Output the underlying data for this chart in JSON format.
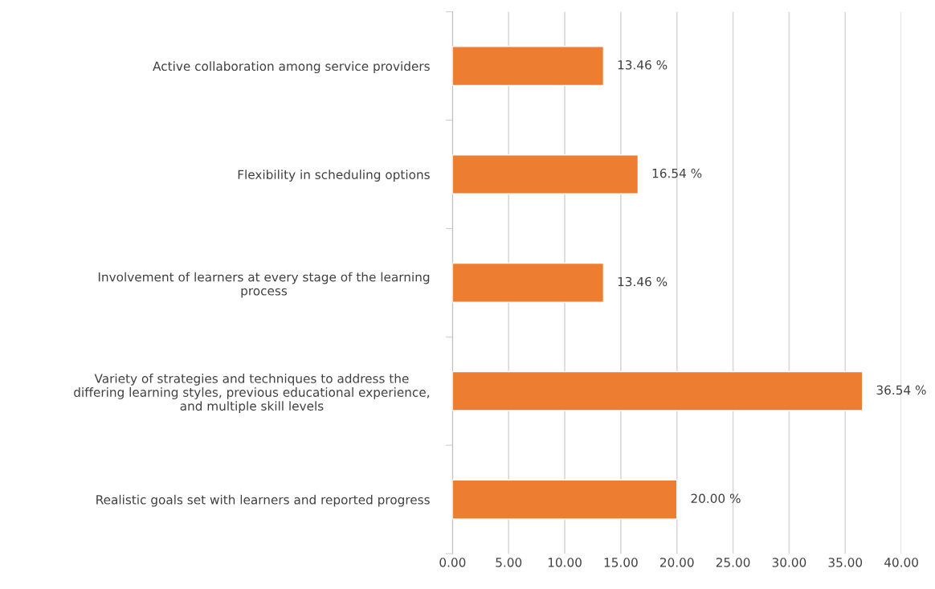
{
  "chart_data": {
    "type": "bar",
    "orientation": "horizontal",
    "categories": [
      "Active collaboration among service providers",
      "Flexibility in scheduling options",
      "Involvement of learners at every stage of the learning\nprocess",
      "Variety of strategies and techniques to address the\ndiffering learning styles, previous educational experience,\nand multiple skill levels",
      "Realistic goals set with learners and reported progress"
    ],
    "values": [
      13.46,
      16.54,
      13.46,
      36.54,
      20.0
    ],
    "value_labels": [
      "13.46 %",
      "16.54 %",
      "13.46 %",
      "36.54 %",
      "20.00 %"
    ],
    "color": "#ed7d31",
    "xlim": [
      0,
      40
    ],
    "xticks": [
      {
        "value": 0,
        "label": "0.00"
      },
      {
        "value": 5,
        "label": "5.00"
      },
      {
        "value": 10,
        "label": "10.00"
      },
      {
        "value": 15,
        "label": "15.00"
      },
      {
        "value": 20,
        "label": "20.00"
      },
      {
        "value": 25,
        "label": "25.00"
      },
      {
        "value": 30,
        "label": "30.00"
      },
      {
        "value": 35,
        "label": "35.00"
      },
      {
        "value": 40,
        "label": "40.00"
      }
    ],
    "grid": "x"
  }
}
